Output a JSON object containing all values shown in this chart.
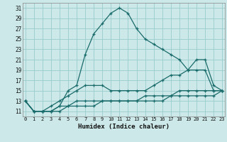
{
  "xlabel": "Humidex (Indice chaleur)",
  "bg_color": "#cce8e8",
  "grid_color": "#99cccc",
  "line_color": "#1a6b6b",
  "x": [
    0,
    1,
    2,
    3,
    4,
    5,
    6,
    7,
    8,
    9,
    10,
    11,
    12,
    13,
    14,
    15,
    16,
    17,
    18,
    19,
    20,
    21,
    22,
    23
  ],
  "line1": [
    13,
    11,
    11,
    11,
    12,
    15,
    16,
    22,
    26,
    28,
    30,
    31,
    30,
    27,
    25,
    24,
    23,
    22,
    21,
    19,
    21,
    21,
    16,
    15
  ],
  "line2": [
    13,
    11,
    11,
    12,
    13,
    14,
    15,
    16,
    16,
    16,
    15,
    15,
    15,
    15,
    15,
    16,
    17,
    18,
    18,
    19,
    19,
    19,
    15,
    15
  ],
  "line3": [
    13,
    11,
    11,
    11,
    12,
    12,
    13,
    13,
    13,
    13,
    13,
    13,
    13,
    13,
    14,
    14,
    14,
    14,
    15,
    15,
    15,
    15,
    15,
    15
  ],
  "line4": [
    13,
    11,
    11,
    11,
    11,
    12,
    12,
    12,
    12,
    13,
    13,
    13,
    13,
    13,
    13,
    13,
    13,
    14,
    14,
    14,
    14,
    14,
    14,
    15
  ],
  "ylim": [
    10,
    32
  ],
  "yticks": [
    11,
    13,
    15,
    17,
    19,
    21,
    23,
    25,
    27,
    29,
    31
  ],
  "xlim": [
    -0.3,
    23.3
  ],
  "xticks": [
    0,
    1,
    2,
    3,
    4,
    5,
    6,
    7,
    8,
    9,
    10,
    11,
    12,
    13,
    14,
    15,
    16,
    17,
    18,
    19,
    20,
    21,
    22,
    23
  ]
}
